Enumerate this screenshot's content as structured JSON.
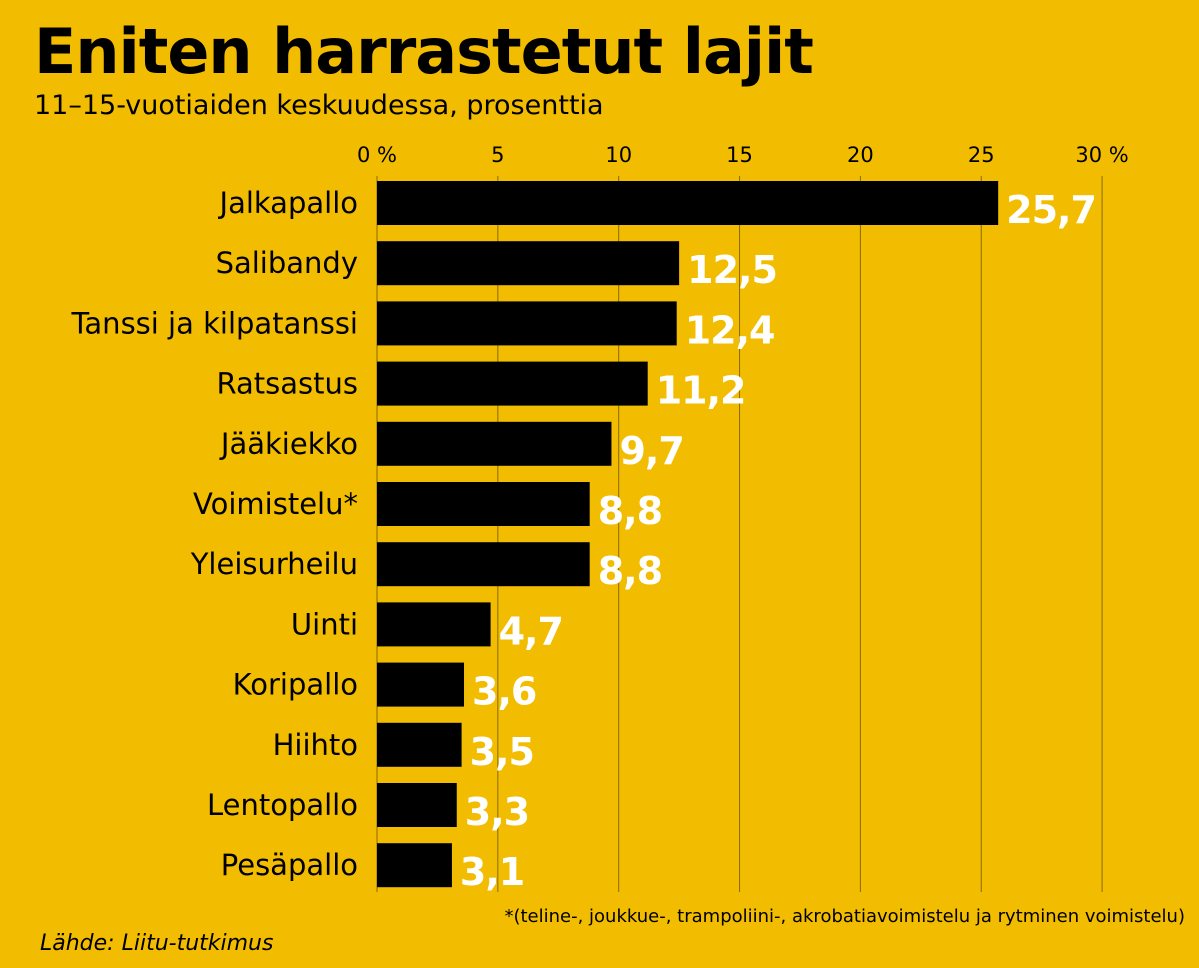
{
  "chart_data": {
    "type": "bar",
    "orientation": "horizontal",
    "title": "Eniten harrastetut lajit",
    "subtitle": "11–15-vuotiaiden keskuudessa, prosenttia",
    "categories": [
      "Jalkapallo",
      "Salibandy",
      "Tanssi ja kilpatanssi",
      "Ratsastus",
      "Jääkiekko",
      "Voimistelu*",
      "Yleisurheilu",
      "Uinti",
      "Koripallo",
      "Hiihto",
      "Lentopallo",
      "Pesäpallo"
    ],
    "values": [
      25.7,
      12.5,
      12.4,
      11.2,
      9.7,
      8.8,
      8.8,
      4.7,
      3.6,
      3.5,
      3.3,
      3.1
    ],
    "value_labels": [
      "25,7",
      "12,5",
      "12,4",
      "11,2",
      "9,7",
      "8,8",
      "8,8",
      "4,7",
      "3,6",
      "3,5",
      "3,3",
      "3,1"
    ],
    "xlim": [
      0,
      30
    ],
    "x_ticks": [
      0,
      5,
      10,
      15,
      20,
      25,
      30
    ],
    "x_tick_labels": [
      "0 %",
      "5",
      "10",
      "15",
      "20",
      "25",
      "30 %"
    ],
    "xlabel": "",
    "ylabel": "",
    "grid": true,
    "axis_position": "top",
    "colors": {
      "background": "#f2bd00",
      "bar": "#000000",
      "value_label": "#ffffff",
      "gridline": "#8a6a00"
    }
  },
  "footnote": "*(teline-, joukkue-, trampoliini-, akrobatiavoimistelu ja rytminen voimistelu)",
  "source": "Lähde: Liitu-tutkimus"
}
